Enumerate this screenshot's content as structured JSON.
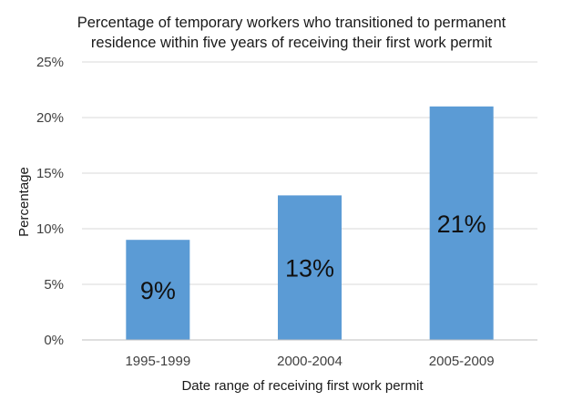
{
  "chart_data": {
    "type": "bar",
    "title_lines": [
      "Percentage of temporary workers who transitioned to permanent",
      "residence within five years of receiving their first work permit"
    ],
    "categories": [
      "1995-1999",
      "2000-2004",
      "2005-2009"
    ],
    "values": [
      9,
      13,
      21
    ],
    "data_labels": [
      "9%",
      "13%",
      "21%"
    ],
    "xlabel": "Date range of receiving first work permit",
    "ylabel": "Percentage",
    "ylim": [
      0,
      25
    ],
    "yticks": [
      0,
      5,
      10,
      15,
      20,
      25
    ],
    "ytick_labels": [
      "0%",
      "5%",
      "10%",
      "15%",
      "20%",
      "25%"
    ],
    "grid": true,
    "legend": "none",
    "bar_color": "#5b9bd5",
    "grid_color": "#d9d9d9"
  }
}
